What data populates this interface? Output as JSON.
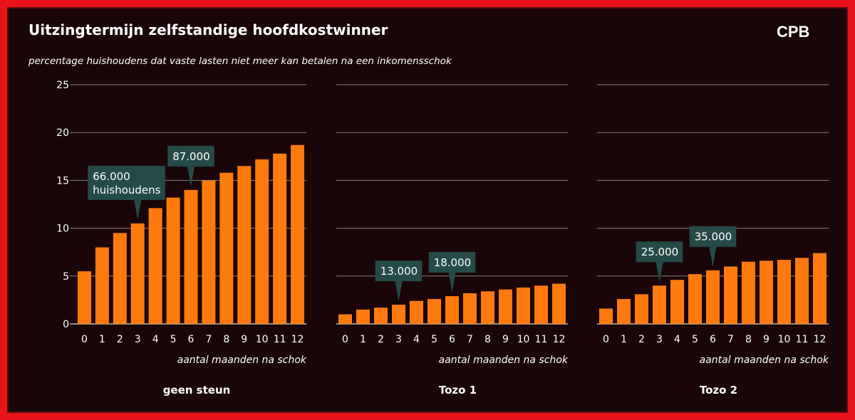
{
  "header": {
    "title": "Uitzingtermijn zelfstandige hoofdkostwinner",
    "subtitle": "percentage huishoudens dat vaste lasten niet meer kan betalen na een inkomensschok",
    "logo": "CPB"
  },
  "colors": {
    "bar": "#ff7a0e",
    "background": "#1a0608",
    "frame": "#e8141a",
    "grid": "#8a7f80",
    "callout": "#254a48",
    "text": "#ffffff"
  },
  "chart_data": [
    {
      "type": "bar",
      "title": "geen steun",
      "xlabel": "aantal maanden na schok",
      "categories": [
        "0",
        "1",
        "2",
        "3",
        "4",
        "5",
        "6",
        "7",
        "8",
        "9",
        "10",
        "11",
        "12"
      ],
      "values": [
        5.5,
        8.0,
        9.5,
        10.5,
        12.1,
        13.2,
        14.0,
        15.0,
        15.8,
        16.5,
        17.2,
        17.8,
        18.7
      ],
      "ylim": [
        0,
        25
      ],
      "yticks": [
        "0",
        "5",
        "10",
        "15",
        "20",
        "25"
      ],
      "grid": true,
      "annotations": [
        {
          "category": "3",
          "lines": [
            "66.000",
            "huishoudens"
          ]
        },
        {
          "category": "6",
          "lines": [
            "87.000"
          ]
        }
      ]
    },
    {
      "type": "bar",
      "title": "Tozo 1",
      "xlabel": "aantal maanden na schok",
      "categories": [
        "0",
        "1",
        "2",
        "3",
        "4",
        "5",
        "6",
        "7",
        "8",
        "9",
        "10",
        "11",
        "12"
      ],
      "values": [
        1.0,
        1.5,
        1.7,
        2.0,
        2.4,
        2.6,
        2.9,
        3.2,
        3.4,
        3.6,
        3.8,
        4.0,
        4.2
      ],
      "ylim": [
        0,
        25
      ],
      "grid": true,
      "annotations": [
        {
          "category": "3",
          "lines": [
            "13.000"
          ]
        },
        {
          "category": "6",
          "lines": [
            "18.000"
          ]
        }
      ]
    },
    {
      "type": "bar",
      "title": "Tozo 2",
      "xlabel": "aantal maanden na schok",
      "categories": [
        "0",
        "1",
        "2",
        "3",
        "4",
        "5",
        "6",
        "7",
        "8",
        "9",
        "10",
        "11",
        "12"
      ],
      "values": [
        1.6,
        2.6,
        3.1,
        4.0,
        4.6,
        5.2,
        5.6,
        6.0,
        6.5,
        6.6,
        6.7,
        6.9,
        7.4
      ],
      "ylim": [
        0,
        25
      ],
      "grid": true,
      "annotations": [
        {
          "category": "3",
          "lines": [
            "25.000"
          ]
        },
        {
          "category": "6",
          "lines": [
            "35.000"
          ]
        }
      ]
    }
  ]
}
